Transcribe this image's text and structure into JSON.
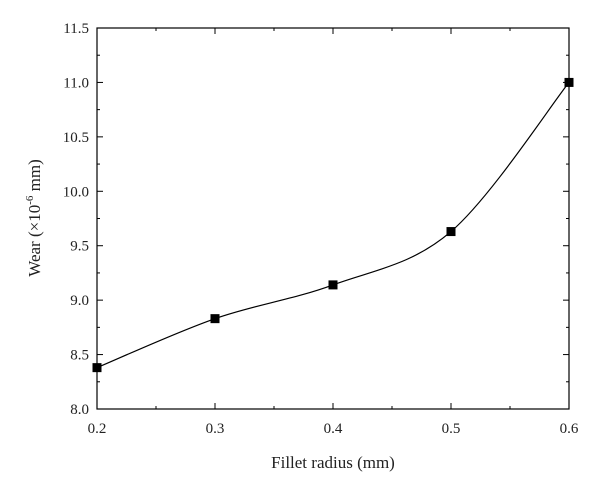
{
  "chart_data": {
    "type": "line",
    "xlabel": "Fillet radius (mm)",
    "ylabel": {
      "prefix": "Wear (×10",
      "exponent": "-6",
      "suffix": " mm)"
    },
    "x_ticks": [
      "0.2",
      "0.3",
      "0.4",
      "0.5",
      "0.6"
    ],
    "y_ticks": [
      "8.0",
      "8.5",
      "9.0",
      "9.5",
      "10.0",
      "10.5",
      "11.0",
      "11.5"
    ],
    "xlim": [
      0.2,
      0.6
    ],
    "ylim": [
      8.0,
      11.5
    ],
    "grid": false,
    "marker": "square",
    "line": "smooth",
    "line_color": "#000000",
    "marker_color": "#000000",
    "series": [
      {
        "x": [
          0.2,
          0.3,
          0.4,
          0.5,
          0.6
        ],
        "y": [
          8.38,
          8.83,
          9.14,
          9.63,
          11.0
        ]
      }
    ]
  }
}
